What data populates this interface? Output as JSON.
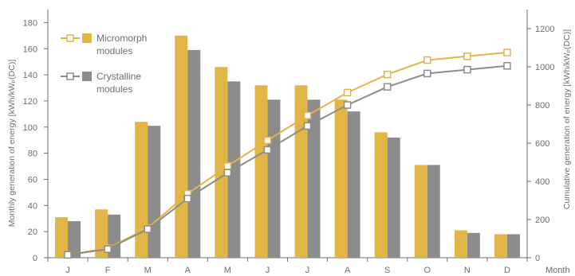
{
  "chart_data": {
    "type": "bar",
    "categories": [
      "J",
      "F",
      "M",
      "A",
      "M",
      "J",
      "J",
      "A",
      "S",
      "O",
      "N",
      "D"
    ],
    "xlabel": "Month",
    "ylabel": "Monthly generation of energy [kWh/kWₚ(DC)]",
    "y2label": "Cumulative generation of energy [kWh/kWₚ(DC)]",
    "ylim": [
      0,
      190
    ],
    "yticks": [
      0,
      20,
      40,
      60,
      80,
      100,
      120,
      140,
      160,
      180
    ],
    "y2lim": [
      0,
      1300
    ],
    "y2ticks": [
      0,
      200,
      400,
      600,
      800,
      1000,
      1200
    ],
    "grid": false,
    "legend_position": "top-left",
    "legend": [
      {
        "lines": [
          "Micromorph",
          "modules"
        ]
      },
      {
        "lines": [
          "Crystalline",
          "modules"
        ]
      }
    ],
    "series": [
      {
        "name": "Micromorph modules",
        "type": "bar",
        "axis": "left",
        "values": [
          31,
          37,
          104,
          170,
          146,
          132,
          132,
          121,
          96,
          71,
          21,
          18
        ]
      },
      {
        "name": "Crystalline modules",
        "type": "bar",
        "axis": "left",
        "values": [
          28,
          33,
          101,
          159,
          135,
          121,
          121,
          112,
          92,
          71,
          19,
          18
        ]
      },
      {
        "name": "Micromorph modules",
        "type": "line",
        "axis": "right",
        "values": [
          15,
          50,
          155,
          335,
          480,
          615,
          745,
          865,
          960,
          1035,
          1055,
          1075
        ]
      },
      {
        "name": "Crystalline modules",
        "type": "line",
        "axis": "right",
        "values": [
          15,
          45,
          150,
          310,
          445,
          565,
          690,
          800,
          895,
          965,
          985,
          1005
        ]
      }
    ],
    "colors": {
      "micromorph": "#e2b547",
      "crystalline": "#8c8c8c",
      "axis": "#6e6e6e"
    }
  }
}
